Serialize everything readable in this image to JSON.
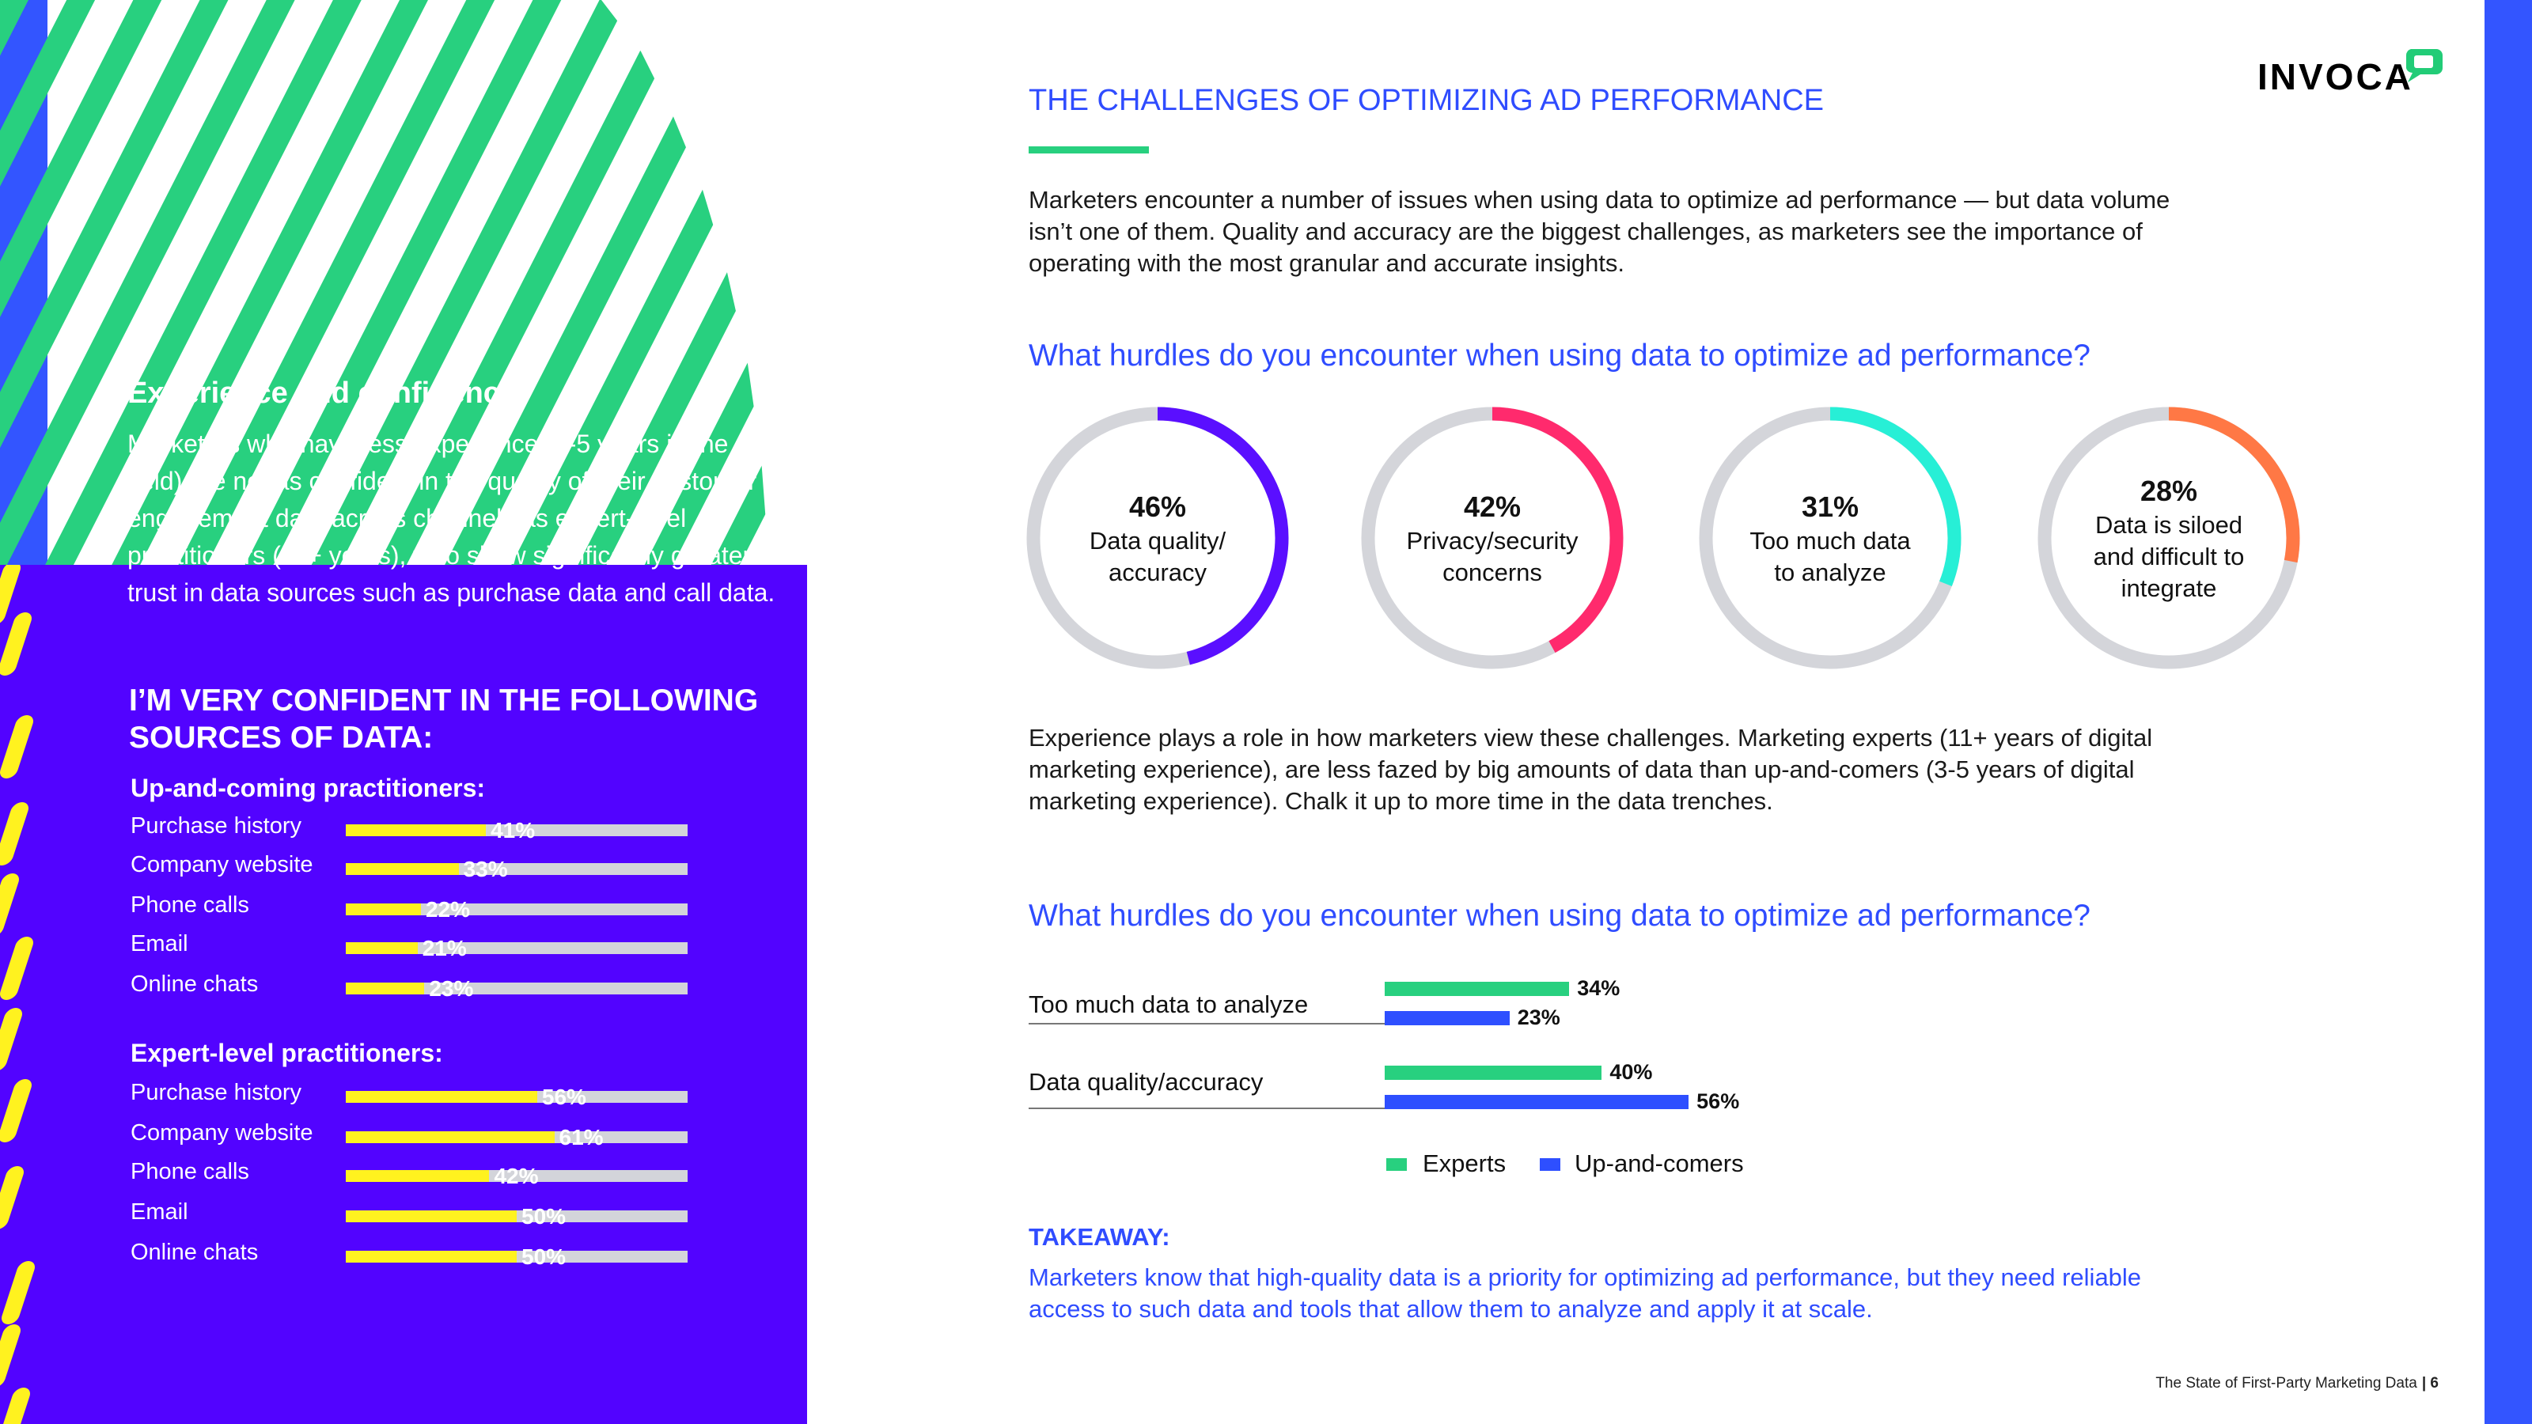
{
  "logo": {
    "text": "INVOCA",
    "icon": "speech-bubble-icon",
    "color": "#22cc77"
  },
  "colors": {
    "purple": "#5203ff",
    "yellow": "#fff21f",
    "green": "#28d07f",
    "blue": "#2e4fff",
    "accent": "#2f4cff"
  },
  "left": {
    "title": "Experience and confidence",
    "paragraph": "Marketers who have less experience (3-5 years in the field) are not as confident in the quality of their customer engagement data across channels as expert-level practitioners (11+ years), who show significantly greater trust in data sources such as purchase data and call data.",
    "chart_title": "I’M VERY CONFIDENT IN THE FOLLOWING SOURCES OF DATA:"
  },
  "chart_data": [
    {
      "type": "bar",
      "title": "I’M VERY CONFIDENT IN THE FOLLOWING SOURCES OF DATA:",
      "groups": [
        {
          "name": "Up-and-coming practitioners:",
          "categories": [
            "Purchase history",
            "Company website",
            "Phone calls",
            "Email",
            "Online chats"
          ],
          "values": [
            41,
            33,
            22,
            21,
            23
          ]
        },
        {
          "name": "Expert-level practitioners:",
          "categories": [
            "Purchase history",
            "Company website",
            "Phone calls",
            "Email",
            "Online chats"
          ],
          "values": [
            56,
            61,
            42,
            50,
            50
          ]
        }
      ],
      "unit": "%",
      "xlim": [
        0,
        100
      ]
    },
    {
      "type": "pie",
      "title": "What hurdles do you encounter when using data to optimize ad performance?",
      "slices": [
        {
          "value": 46,
          "label_pct": "46%",
          "label": [
            "Data quality/",
            "accuracy"
          ],
          "color": "#5a0fff"
        },
        {
          "value": 42,
          "label_pct": "42%",
          "label": [
            "Privacy/security",
            "concerns"
          ],
          "color": "#ff2a6d"
        },
        {
          "value": 31,
          "label_pct": "31%",
          "label": [
            "Too much data",
            "to analyze"
          ],
          "color": "#27efd6"
        },
        {
          "value": 28,
          "label_pct": "28%",
          "label": [
            "Data is siloed",
            "and difficult to",
            "integrate"
          ],
          "color": "#ff7845"
        }
      ]
    },
    {
      "type": "bar",
      "title": "What hurdles do you encounter when using data to optimize ad performance?",
      "categories": [
        "Too much data to analyze",
        "Data quality/accuracy"
      ],
      "series": [
        {
          "name": "Experts",
          "values": [
            34,
            40
          ],
          "labels": [
            "34%",
            "40%"
          ],
          "color": "#28d07f"
        },
        {
          "name": "Up-and-comers",
          "values": [
            23,
            56
          ],
          "labels": [
            "23%",
            "56%"
          ],
          "color": "#2e4fff"
        }
      ],
      "unit": "%"
    }
  ],
  "right": {
    "title": "THE CHALLENGES OF OPTIMIZING AD PERFORMANCE",
    "intro": "Marketers encounter a number of issues when using data to optimize ad performance — but data volume isn’t one of them. Quality and accuracy are the biggest challenges, as marketers see the importance of operating with the most granular and accurate insights.",
    "question1": "What hurdles do you encounter when using data to optimize ad performance?",
    "para2": "Experience plays a role in how marketers view these challenges. Marketing experts (11+ years of digital marketing experience), are less fazed by big amounts of data than up-and-comers (3-5 years of digital marketing experience). Chalk it up to more time in the data trenches.",
    "question2": "What hurdles do you encounter when using data to optimize ad performance?",
    "takeaway_title": "TAKEAWAY:",
    "takeaway_text": "Marketers know that high-quality data is a priority for optimizing ad performance, but they need reliable access to such data and tools that allow them to analyze and apply it at scale."
  },
  "footer": {
    "doc_title": "The State of First-Party Marketing Data",
    "page": "| 6"
  }
}
